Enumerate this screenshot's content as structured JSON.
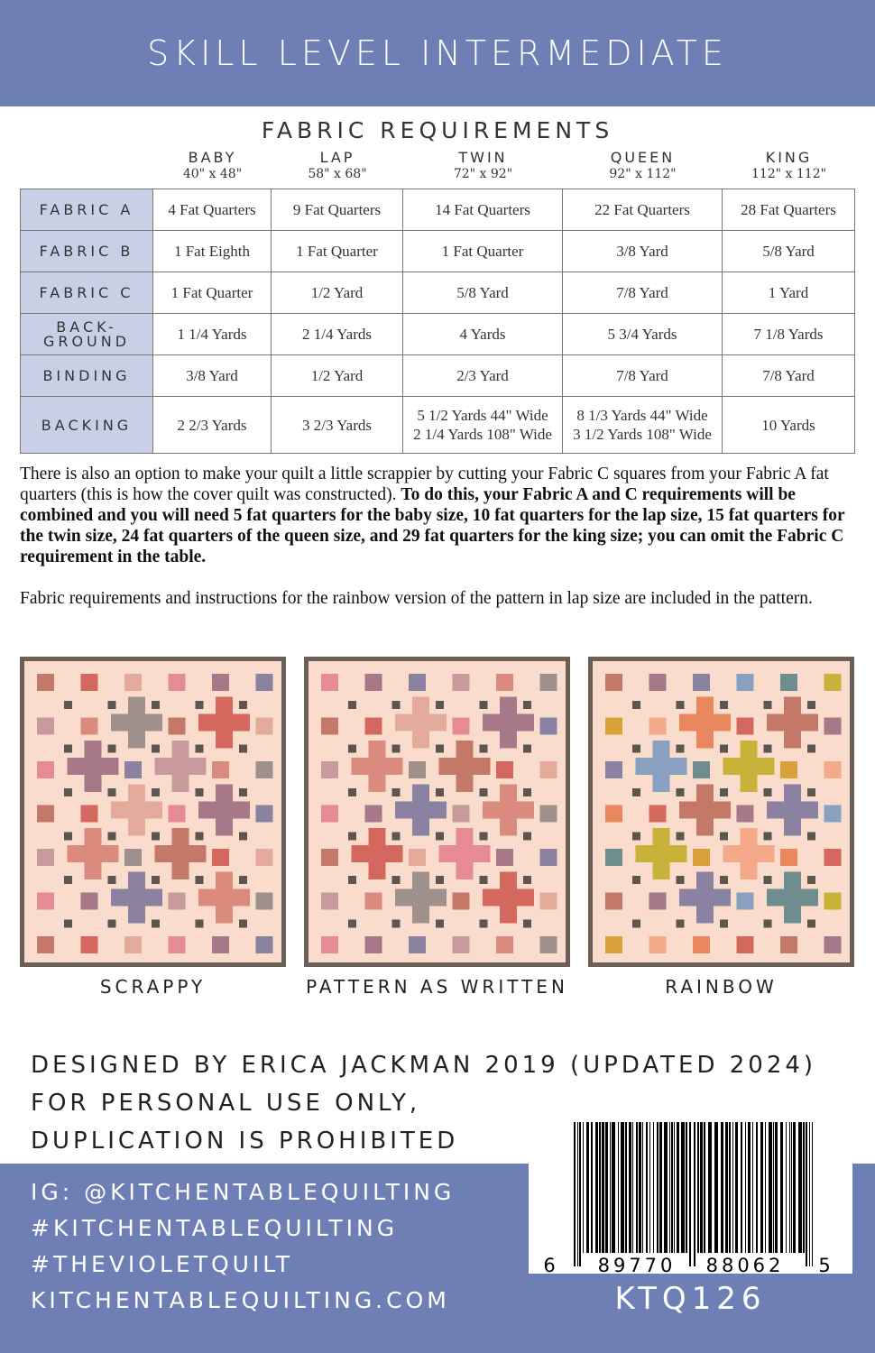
{
  "header": {
    "skill_level": "SKILL LEVEL INTERMEDIATE"
  },
  "fabric_requirements": {
    "title": "FABRIC REQUIREMENTS",
    "sizes": [
      {
        "name": "BABY",
        "dims": "40\" x 48\""
      },
      {
        "name": "LAP",
        "dims": "58\" x 68\""
      },
      {
        "name": "TWIN",
        "dims": "72\" x 92\""
      },
      {
        "name": "QUEEN",
        "dims": "92\" x 112\""
      },
      {
        "name": "KING",
        "dims": "112\" x 112\""
      }
    ],
    "rows": [
      {
        "label": "FABRIC A",
        "cells": [
          "4 Fat Quarters",
          "9 Fat Quarters",
          "14 Fat Quarters",
          "22 Fat Quarters",
          "28 Fat Quarters"
        ]
      },
      {
        "label": "FABRIC B",
        "cells": [
          "1 Fat Eighth",
          "1 Fat Quarter",
          "1 Fat Quarter",
          "3/8 Yard",
          "5/8 Yard"
        ]
      },
      {
        "label": "FABRIC C",
        "cells": [
          "1 Fat Quarter",
          "1/2 Yard",
          "5/8 Yard",
          "7/8 Yard",
          "1 Yard"
        ]
      },
      {
        "label": "BACK-\nGROUND",
        "cells": [
          "1 1/4 Yards",
          "2 1/4 Yards",
          "4 Yards",
          "5 3/4 Yards",
          "7 1/8 Yards"
        ]
      },
      {
        "label": "BINDING",
        "cells": [
          "3/8 Yard",
          "1/2 Yard",
          "2/3 Yard",
          "7/8 Yard",
          "7/8 Yard"
        ]
      },
      {
        "label": "BACKING",
        "cells": [
          "2 2/3 Yards",
          "3 2/3 Yards",
          "5 1/2 Yards 44\" Wide\n2 1/4 Yards 108\" Wide",
          "8 1/3 Yards 44\" Wide\n3 1/2 Yards 108\" Wide",
          "10 Yards"
        ]
      }
    ]
  },
  "notes": {
    "scrappy_intro": "There is also an option to make your quilt a little scrappier by cutting your Fabric C squares from your Fabric A fat quarters (this is how the cover quilt was constructed).",
    "scrappy_bold": "To do this, your Fabric A and C requirements will be combined and you will need 5 fat quarters for the baby size, 10 fat quarters for the lap size, 15 fat quarters for the twin size, 24 fat quarters of the queen size, and 29 fat quarters for the king size; you can omit the Fabric C requirement in the table.",
    "rainbow": "Fabric requirements and instructions for the rainbow version of the pattern in lap size are included in the pattern."
  },
  "quilts": [
    {
      "label": "SCRAPPY",
      "palette": [
        "#c47868",
        "#d4685f",
        "#e4ab9c",
        "#e68a93",
        "#a77888",
        "#8a82a0",
        "#c89a9c",
        "#db8a7e",
        "#9e918c"
      ]
    },
    {
      "label": "PATTERN AS WRITTEN",
      "palette": [
        "#c47868",
        "#d4685f",
        "#e4ab9c",
        "#e68a93",
        "#a77888",
        "#8a82a0",
        "#c89a9c",
        "#db8a7e",
        "#9e918c"
      ]
    },
    {
      "label": "RAINBOW",
      "palette": [
        "#6f8c8f",
        "#c8b23a",
        "#d9a13a",
        "#f3a98a",
        "#e9885e",
        "#d4685f",
        "#c47868",
        "#a77888",
        "#8a82a0",
        "#8aa0c0"
      ]
    }
  ],
  "colors": {
    "accent": "#6e7fb5",
    "quilt_background": "#f9dccb",
    "quilt_border": "#6b6058",
    "dots": "#5d554e",
    "row_header": "#c8d0e6"
  },
  "credits": [
    "DESIGNED BY ERICA JACKMAN 2019 (UPDATED 2024)",
    "FOR PERSONAL USE ONLY,",
    "DUPLICATION IS PROHIBITED"
  ],
  "social": [
    "IG: @KITCHENTABLEQUILTING",
    "#KITCHENTABLEQUILTING",
    "#THEVIOLETQUILT",
    "KITCHENTABLEQUILTING.COM"
  ],
  "barcode": {
    "digits": [
      "6",
      "89770",
      "88062",
      "5"
    ]
  },
  "sku": "KTQ126"
}
